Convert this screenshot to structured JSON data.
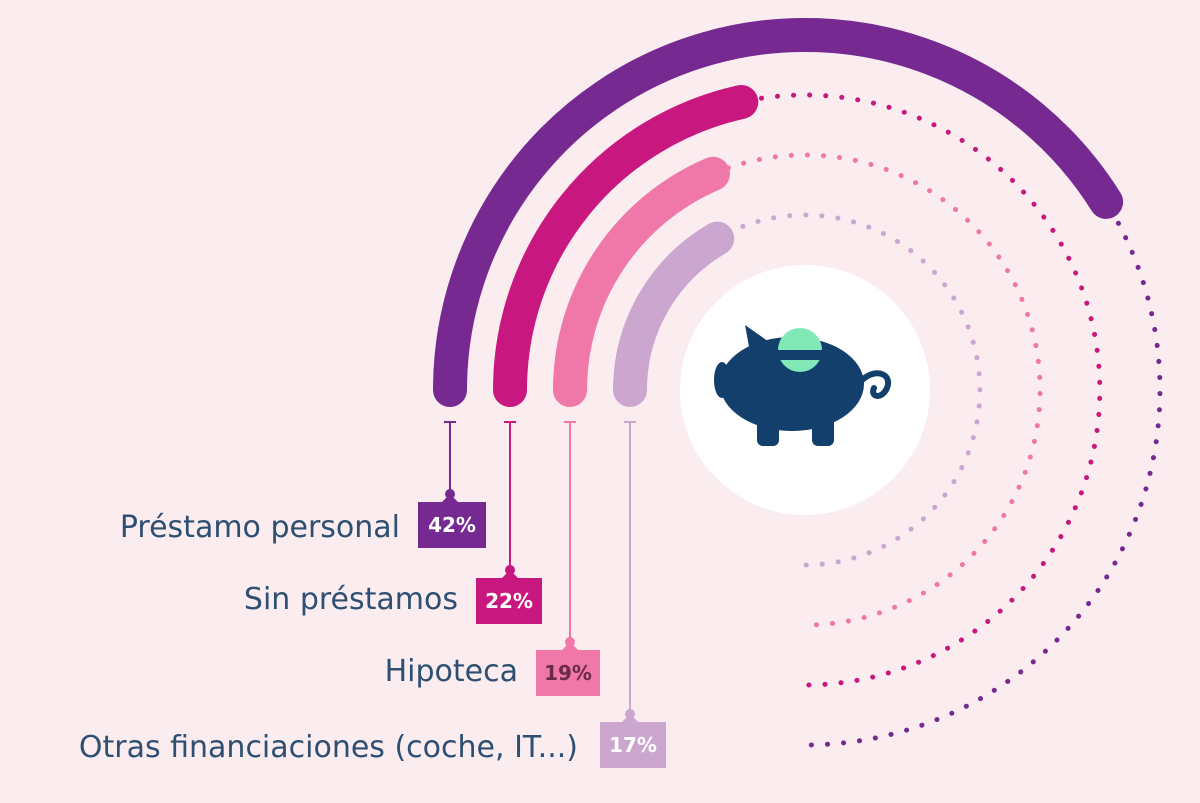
{
  "chart_data": {
    "type": "radial-bar",
    "title": "",
    "categories": [
      "Préstamo personal",
      "Sin préstamos",
      "Hipoteca",
      "Otras financiaciones (coche, IT...)"
    ],
    "values": [
      42,
      22,
      19,
      17
    ],
    "value_labels": [
      "42%",
      "22%",
      "19%",
      "17%"
    ],
    "colors": [
      "#762a91",
      "#c8187f",
      "#ef78a9",
      "#cba7cf"
    ],
    "label_color": "#2d4f72",
    "background": "#fbecef",
    "center_icon": "piggy-bank-icon"
  }
}
